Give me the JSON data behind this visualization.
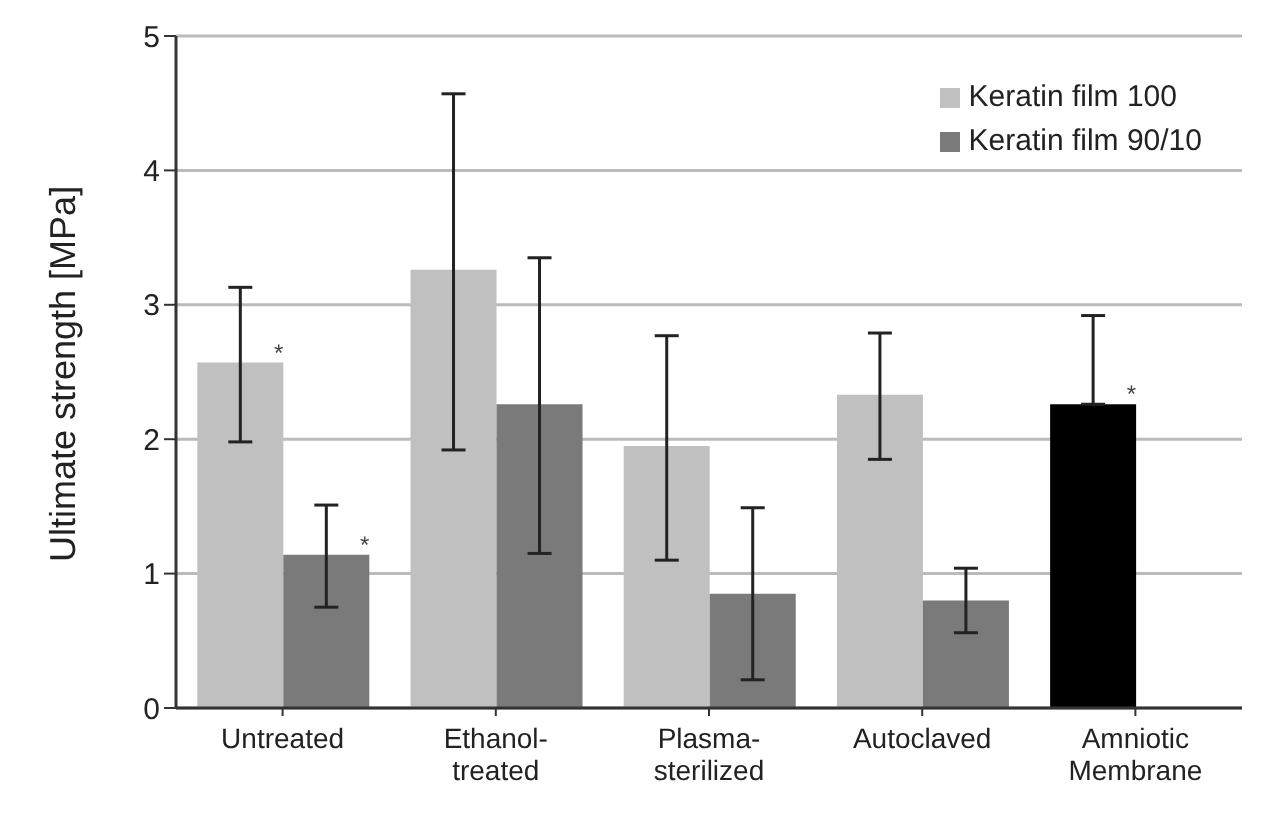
{
  "chart_data": {
    "type": "bar",
    "ylabel": "Ultimate strength [MPa]",
    "categories": [
      "Untreated",
      "Ethanol-treated",
      "Plasma-sterilized",
      "Autoclaved",
      "Amniotic Membrane"
    ],
    "series": [
      {
        "name": "Keratin film 100",
        "color": "#c0c0c0",
        "colors": [
          "#c0c0c0",
          "#c0c0c0",
          "#c0c0c0",
          "#c0c0c0",
          "#000000"
        ],
        "values": [
          2.57,
          3.26,
          1.95,
          2.33,
          2.26
        ],
        "errors": [
          [
            1.98,
            3.13
          ],
          [
            1.92,
            4.57
          ],
          [
            1.1,
            2.77
          ],
          [
            1.85,
            2.79
          ],
          [
            2.26,
            2.92
          ]
        ],
        "value_labels": [
          "*",
          null,
          null,
          null,
          "*"
        ]
      },
      {
        "name": "Keratin film 90/10",
        "color": "#7a7a7a",
        "values": [
          1.14,
          2.26,
          0.85,
          0.8,
          null
        ],
        "errors": [
          [
            0.75,
            1.51
          ],
          [
            1.15,
            3.35
          ],
          [
            0.21,
            1.49
          ],
          [
            0.56,
            1.04
          ],
          null
        ],
        "value_labels": [
          "*",
          null,
          null,
          null,
          null
        ]
      }
    ],
    "ylim": [
      0,
      5
    ],
    "yticks": [
      0,
      1,
      2,
      3,
      4,
      5
    ],
    "grid": "y",
    "legend": "top right"
  }
}
